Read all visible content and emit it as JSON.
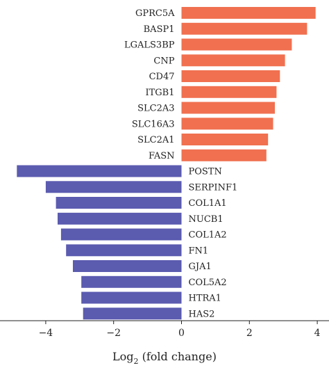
{
  "chart_data": {
    "type": "bar",
    "orientation": "horizontal",
    "title": "",
    "xlabel_main": "Log",
    "xlabel_sub": "2",
    "xlabel_rest": " (fold change)",
    "xlim": [
      -4.9,
      4.1
    ],
    "xticks": [
      -4,
      -2,
      0,
      2,
      4
    ],
    "xtick_labels": [
      "−4",
      "−2",
      "0",
      "2",
      "4"
    ],
    "grid": false,
    "colors": {
      "up": "#F07050",
      "down": "#5B5BB0"
    },
    "categories": [
      "GPRC5A",
      "BASP1",
      "LGALS3BP",
      "CNP",
      "CD47",
      "ITGB1",
      "SLC2A3",
      "SLC16A3",
      "SLC2A1",
      "FASN",
      "POSTN",
      "SERPINF1",
      "COL1A1",
      "NUCB1",
      "COL1A2",
      "FN1",
      "GJA1",
      "COL5A2",
      "HTRA1",
      "HAS2"
    ],
    "values": [
      3.95,
      3.7,
      3.25,
      3.05,
      2.9,
      2.8,
      2.75,
      2.7,
      2.55,
      2.5,
      -4.85,
      -4.0,
      -3.7,
      -3.65,
      -3.55,
      -3.4,
      -3.2,
      -2.95,
      -2.95,
      -2.9
    ]
  }
}
